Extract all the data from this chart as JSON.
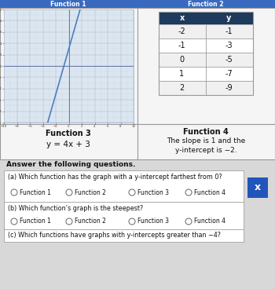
{
  "title_function1": "Function 1",
  "title_function2": "Function 2",
  "title_function3": "Function 3",
  "title_function4": "Function 4",
  "func3_equation": "y = 4x + 3",
  "func4_description_line1": "The slope is 1 and the",
  "func4_description_line2": "y-intercept is −2.",
  "table_headers": [
    "x",
    "y"
  ],
  "table_data": [
    [
      -2,
      -1
    ],
    [
      -1,
      -3
    ],
    [
      0,
      -5
    ],
    [
      1,
      -7
    ],
    [
      2,
      -9
    ]
  ],
  "answer_header": "Answer the following questions.",
  "q_a_text": "(a) Which function has the graph with a y-intercept farthest from 0?",
  "q_a_options": [
    "Function 1",
    "Function 2",
    "Function 3",
    "Function 4"
  ],
  "q_b_text": "(b) Which function’s graph is the steepest?",
  "q_b_options": [
    "Function 1",
    "Function 2",
    "Function 3",
    "Function 4"
  ],
  "q_c_text": "(c) Which functions have graphs with y-intercepts greater than −4?",
  "bg_color": "#d8d8d8",
  "table_header_bg": "#1e3a5c",
  "table_header_fg": "#ffffff",
  "table_row_bg_alt": "#f0f0f0",
  "table_row_bg": "#ffffff",
  "table_border_color": "#999999",
  "box_bg": "#ffffff",
  "box_border": "#aaaaaa",
  "graph_line_color": "#4a80c0",
  "graph_bg": "#dce6f0",
  "graph_grid_color": "#aabbd0",
  "graph_axis_color": "#6677aa",
  "section_border": "#999999",
  "x_button_bg": "#2255bb",
  "x_button_fg": "#ffffff",
  "top_header_bg": "#3a6abf",
  "top_header_fg": "#ffffff",
  "panel_bg": "#f5f5f5"
}
